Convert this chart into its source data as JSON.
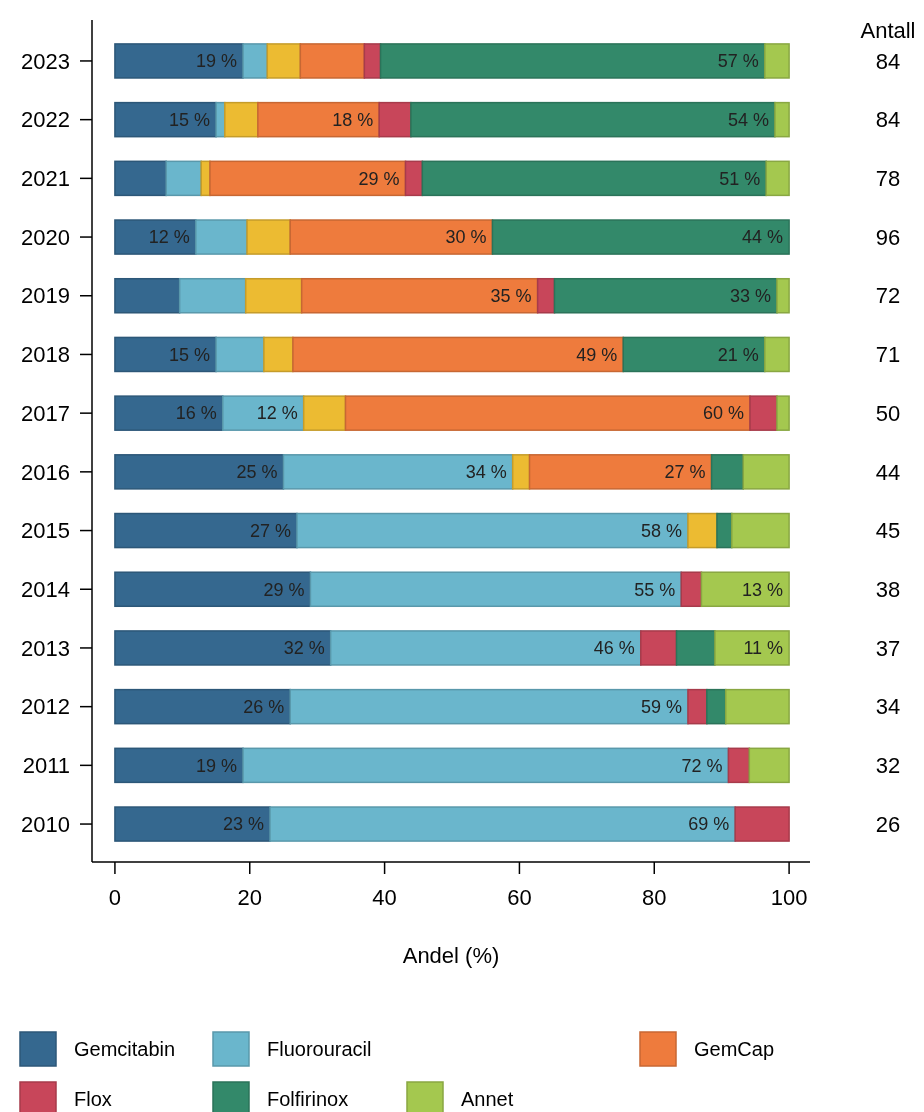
{
  "chart_data": {
    "type": "bar",
    "orientation": "horizontal",
    "stacked": true,
    "xlabel": "Andel (%)",
    "categories": [
      "2023",
      "2022",
      "2021",
      "2020",
      "2019",
      "2018",
      "2017",
      "2016",
      "2015",
      "2014",
      "2013",
      "2012",
      "2011",
      "2010"
    ],
    "xlim": [
      -3.4,
      103.1
    ],
    "xticks": [
      0,
      20,
      40,
      60,
      80,
      100
    ],
    "grid": false,
    "legend": "bottom",
    "series": [
      {
        "name": "Gemcitabin",
        "color": "#35688f",
        "values": [
          19,
          15,
          7.6,
          12,
          9.6,
          15,
          16,
          25,
          27,
          29,
          32,
          26,
          19,
          23
        ],
        "value_labels": [
          "19 %",
          "15 %",
          null,
          "12 %",
          null,
          "15 %",
          "16 %",
          "25 %",
          "27 %",
          "29 %",
          "32 %",
          "26 %",
          "19 %",
          "23 %"
        ]
      },
      {
        "name": "Fluorouracil",
        "color": "#6ab6cc",
        "values": [
          3.6,
          1.3,
          5.2,
          7.6,
          9.8,
          7.1,
          12,
          34,
          58,
          55,
          46,
          59,
          72,
          69
        ],
        "value_labels": [
          null,
          null,
          null,
          null,
          null,
          null,
          "12 %",
          "34 %",
          "58 %",
          "55 %",
          "46 %",
          "59 %",
          "72 %",
          "69 %"
        ]
      },
      {
        "color": "#ecbb32",
        "values": [
          4.9,
          4.9,
          1.3,
          6.4,
          8.3,
          4.3,
          6.2,
          2.5,
          4.3,
          0,
          0,
          0,
          0,
          0
        ]
      },
      {
        "name": "GemCap",
        "color": "#ee7b3d",
        "values": [
          9.5,
          18,
          29,
          30,
          35,
          49,
          60,
          27,
          0,
          0,
          0,
          0,
          0,
          0
        ],
        "value_labels": [
          null,
          "18 %",
          "29 %",
          "30 %",
          "35 %",
          "49 %",
          "60 %",
          "27 %",
          null,
          null,
          null,
          null,
          null,
          null
        ]
      },
      {
        "name": "Flox",
        "color": "#c8465a",
        "values": [
          2.4,
          4.7,
          2.5,
          0,
          2.5,
          0,
          4,
          0,
          0,
          3,
          5.3,
          2.8,
          3.1,
          8
        ]
      },
      {
        "name": "Folfirinox",
        "color": "#33896a",
        "values": [
          57,
          54,
          51,
          44,
          33,
          21,
          0,
          4.7,
          2.2,
          0,
          5.7,
          2.8,
          0,
          0
        ],
        "value_labels": [
          "57 %",
          "54 %",
          "51 %",
          "44 %",
          "33 %",
          "21 %",
          null,
          null,
          null,
          null,
          null,
          null,
          null,
          null
        ]
      },
      {
        "name": "Annet",
        "color": "#a4c84f",
        "values": [
          3.6,
          2.1,
          3.4,
          0,
          1.8,
          3.6,
          1.8,
          6.8,
          8.5,
          13,
          11,
          9.4,
          5.9,
          0
        ],
        "value_labels": [
          null,
          null,
          null,
          null,
          null,
          null,
          null,
          null,
          null,
          "13 %",
          "11 %",
          null,
          null,
          null
        ]
      }
    ],
    "annotations": [
      "Antall",
      "84",
      "84",
      "78",
      "96",
      "72",
      "71",
      "50",
      "44",
      "45",
      "38",
      "37",
      "34",
      "32",
      "26"
    ]
  }
}
